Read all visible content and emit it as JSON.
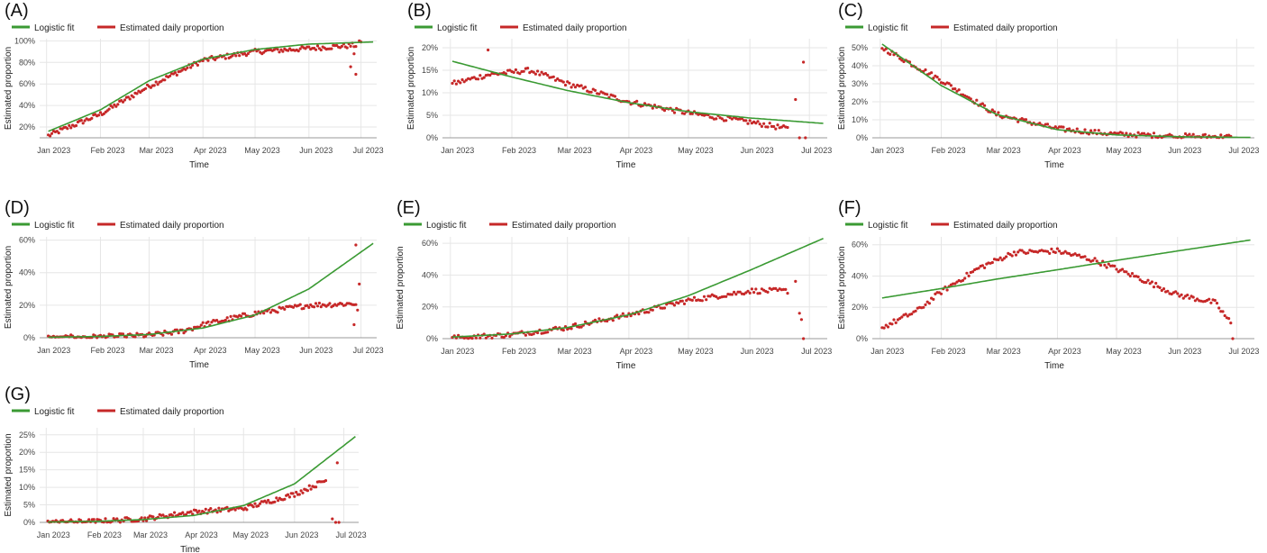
{
  "figure": {
    "legend_fit": "Logistic fit",
    "legend_points": "Estimated daily proportion",
    "colors": {
      "fit": "#3a9a33",
      "points": "#c62828",
      "grid": "#e6e6e6",
      "axis": "#999999"
    }
  },
  "chart_data": [
    {
      "panel": "(A)",
      "type": "line",
      "xlabel": "Time",
      "ylabel": "Estimated proportion",
      "x_ticks": [
        "Jan 2023",
        "Feb 2023",
        "Mar 2023",
        "Apr 2023",
        "May 2023",
        "Jun 2023",
        "Jul 2023"
      ],
      "y_ticks": [
        "20%",
        "40%",
        "60%",
        "80%",
        "100%"
      ],
      "xlim": [
        "2022-12-28",
        "2023-07-10"
      ],
      "ylim": [
        10,
        102
      ],
      "y_tick_values": [
        20,
        40,
        60,
        80,
        100
      ],
      "legend": "top-left",
      "fit": {
        "name": "Logistic fit",
        "x": [
          "2023-01-02",
          "2023-02-01",
          "2023-03-01",
          "2023-04-01",
          "2023-05-01",
          "2023-06-01",
          "2023-07-08"
        ],
        "y": [
          16,
          36,
          63,
          83,
          92,
          97,
          99
        ]
      },
      "points_trend": {
        "name": "Estimated daily proportion",
        "x": [
          "2023-01-02",
          "2023-02-01",
          "2023-03-01",
          "2023-04-01",
          "2023-05-01",
          "2023-06-01",
          "2023-06-28"
        ],
        "y": [
          12,
          32,
          58,
          82,
          90,
          93,
          96
        ]
      },
      "outliers": {
        "x": [
          "2023-06-25",
          "2023-06-27",
          "2023-06-28",
          "2023-06-30",
          "2023-07-01"
        ],
        "y": [
          76,
          88,
          69,
          100,
          99
        ]
      }
    },
    {
      "panel": "(B)",
      "type": "line",
      "xlabel": "Time",
      "ylabel": "Estimated proportion",
      "x_ticks": [
        "Jan 2023",
        "Feb 2023",
        "Mar 2023",
        "Apr 2023",
        "May 2023",
        "Jun 2023",
        "Jul 2023"
      ],
      "y_ticks": [
        "0%",
        "5%",
        "10%",
        "15%",
        "20%"
      ],
      "xlim": [
        "2022-12-28",
        "2023-07-10"
      ],
      "ylim": [
        0,
        22
      ],
      "y_tick_values": [
        0,
        5,
        10,
        15,
        20
      ],
      "legend": "top-left",
      "fit": {
        "name": "Logistic fit",
        "x": [
          "2023-01-02",
          "2023-02-01",
          "2023-03-01",
          "2023-04-01",
          "2023-05-01",
          "2023-06-01",
          "2023-07-08"
        ],
        "y": [
          17,
          13.5,
          10.5,
          7.8,
          5.8,
          4.4,
          3.2
        ]
      },
      "points_trend": {
        "name": "Estimated daily proportion",
        "x": [
          "2023-01-02",
          "2023-01-20",
          "2023-02-10",
          "2023-03-01",
          "2023-04-01",
          "2023-05-01",
          "2023-06-01",
          "2023-06-20"
        ],
        "y": [
          12,
          14,
          15,
          12,
          8,
          5.5,
          3.5,
          2
        ]
      },
      "outliers": {
        "x": [
          "2023-01-20",
          "2023-06-24",
          "2023-06-26",
          "2023-06-28",
          "2023-06-29"
        ],
        "y": [
          19.5,
          8.5,
          0,
          16.8,
          0
        ]
      }
    },
    {
      "panel": "(C)",
      "type": "line",
      "xlabel": "Time",
      "ylabel": "Estimated proportion",
      "x_ticks": [
        "Jan 2023",
        "Feb 2023",
        "Mar 2023",
        "Apr 2023",
        "May 2023",
        "Jun 2023",
        "Jul 2023"
      ],
      "y_ticks": [
        "0%",
        "10%",
        "20%",
        "30%",
        "40%",
        "50%"
      ],
      "xlim": [
        "2022-12-28",
        "2023-07-10"
      ],
      "ylim": [
        0,
        55
      ],
      "y_tick_values": [
        0,
        10,
        20,
        30,
        40,
        50
      ],
      "legend": "top-left",
      "fit": {
        "name": "Logistic fit",
        "x": [
          "2023-01-02",
          "2023-02-01",
          "2023-03-01",
          "2023-04-01",
          "2023-05-01",
          "2023-06-01",
          "2023-07-08"
        ],
        "y": [
          52,
          29,
          13,
          4.5,
          1.6,
          0.6,
          0.2
        ]
      },
      "points_trend": {
        "name": "Estimated daily proportion",
        "x": [
          "2023-01-02",
          "2023-02-01",
          "2023-03-01",
          "2023-04-01",
          "2023-05-01",
          "2023-06-01",
          "2023-06-28"
        ],
        "y": [
          50,
          32,
          13,
          5,
          2,
          1,
          0.5
        ]
      },
      "outliers": {
        "x": [],
        "y": []
      }
    },
    {
      "panel": "(D)",
      "type": "line",
      "xlabel": "Time",
      "ylabel": "Estimated proportion",
      "x_ticks": [
        "Jan 2023",
        "Feb 2023",
        "Mar 2023",
        "Apr 2023",
        "May 2023",
        "Jun 2023",
        "Jul 2023"
      ],
      "y_ticks": [
        "0%",
        "20%",
        "40%",
        "60%"
      ],
      "xlim": [
        "2022-12-28",
        "2023-07-10"
      ],
      "ylim": [
        0,
        62
      ],
      "y_tick_values": [
        0,
        20,
        40,
        60
      ],
      "legend": "top-left",
      "fit": {
        "name": "Logistic fit",
        "x": [
          "2023-01-02",
          "2023-02-01",
          "2023-03-01",
          "2023-04-01",
          "2023-05-01",
          "2023-06-01",
          "2023-07-08"
        ],
        "y": [
          0.3,
          0.8,
          2,
          6,
          14,
          30,
          58
        ]
      },
      "points_trend": {
        "name": "Estimated daily proportion",
        "x": [
          "2023-01-02",
          "2023-02-01",
          "2023-03-01",
          "2023-03-20",
          "2023-04-01",
          "2023-05-01",
          "2023-06-01",
          "2023-06-28"
        ],
        "y": [
          0,
          0.5,
          1.5,
          4,
          8,
          15,
          20,
          21
        ]
      },
      "outliers": {
        "x": [
          "2023-06-27",
          "2023-06-28",
          "2023-06-29",
          "2023-06-30"
        ],
        "y": [
          8,
          57,
          17,
          33
        ]
      }
    },
    {
      "panel": "(E)",
      "type": "line",
      "xlabel": "Time",
      "ylabel": "Estimated proportion",
      "x_ticks": [
        "Jan 2023",
        "Feb 2023",
        "Mar 2023",
        "Apr 2023",
        "May 2023",
        "Jun 2023",
        "Jul 2023"
      ],
      "y_ticks": [
        "0%",
        "20%",
        "40%",
        "60%"
      ],
      "xlim": [
        "2022-12-28",
        "2023-07-10"
      ],
      "ylim": [
        0,
        64
      ],
      "y_tick_values": [
        0,
        20,
        40,
        60
      ],
      "legend": "top-left",
      "fit": {
        "name": "Logistic fit",
        "x": [
          "2023-01-02",
          "2023-02-01",
          "2023-03-01",
          "2023-04-01",
          "2023-05-01",
          "2023-06-01",
          "2023-07-08"
        ],
        "y": [
          1,
          3,
          7,
          15,
          27,
          43,
          63
        ]
      },
      "points_trend": {
        "name": "Estimated daily proportion",
        "x": [
          "2023-01-02",
          "2023-02-01",
          "2023-03-01",
          "2023-04-01",
          "2023-05-01",
          "2023-06-01",
          "2023-06-20"
        ],
        "y": [
          0.5,
          2.5,
          7,
          15,
          24,
          30,
          30
        ]
      },
      "outliers": {
        "x": [
          "2023-06-24",
          "2023-06-26",
          "2023-06-27",
          "2023-06-28"
        ],
        "y": [
          36,
          16,
          12,
          0
        ]
      }
    },
    {
      "panel": "(F)",
      "type": "line",
      "xlabel": "Time",
      "ylabel": "Estimated proportion",
      "x_ticks": [
        "Jan 2023",
        "Feb 2023",
        "Mar 2023",
        "Apr 2023",
        "May 2023",
        "Jun 2023",
        "Jul 2023"
      ],
      "y_ticks": [
        "0%",
        "20%",
        "40%",
        "60%"
      ],
      "xlim": [
        "2022-12-28",
        "2023-07-10"
      ],
      "ylim": [
        0,
        65
      ],
      "y_tick_values": [
        0,
        20,
        40,
        60
      ],
      "legend": "top-left",
      "fit": {
        "name": "Logistic fit",
        "x": [
          "2023-01-02",
          "2023-02-01",
          "2023-03-01",
          "2023-04-01",
          "2023-05-01",
          "2023-06-01",
          "2023-07-08"
        ],
        "y": [
          26,
          32,
          38,
          44,
          50,
          56,
          63
        ]
      },
      "points_trend": {
        "name": "Estimated daily proportion",
        "x": [
          "2023-01-02",
          "2023-01-20",
          "2023-02-01",
          "2023-02-20",
          "2023-03-10",
          "2023-04-01",
          "2023-04-20",
          "2023-05-10",
          "2023-06-01",
          "2023-06-20",
          "2023-06-28"
        ],
        "y": [
          7,
          18,
          30,
          45,
          55,
          56,
          50,
          40,
          28,
          23,
          10
        ]
      },
      "outliers": {
        "x": [
          "2023-06-29"
        ],
        "y": [
          0
        ]
      }
    },
    {
      "panel": "(G)",
      "type": "line",
      "xlabel": "Time",
      "ylabel": "Estimated proportion",
      "x_ticks": [
        "Jan 2023",
        "Feb 2023",
        "Mar 2023",
        "Apr 2023",
        "May 2023",
        "Jun 2023",
        "Jul 2023"
      ],
      "y_ticks": [
        "0%",
        "5%",
        "10%",
        "15%",
        "20%",
        "25%"
      ],
      "xlim": [
        "2022-12-28",
        "2023-07-10"
      ],
      "ylim": [
        0,
        27
      ],
      "y_tick_values": [
        0,
        5,
        10,
        15,
        20,
        25
      ],
      "legend": "top-left",
      "fit": {
        "name": "Logistic fit",
        "x": [
          "2023-01-02",
          "2023-02-01",
          "2023-03-01",
          "2023-04-01",
          "2023-05-01",
          "2023-06-01",
          "2023-07-08"
        ],
        "y": [
          0.1,
          0.3,
          0.8,
          2,
          4.8,
          11,
          24.5
        ]
      },
      "points_trend": {
        "name": "Estimated daily proportion",
        "x": [
          "2023-01-02",
          "2023-02-01",
          "2023-03-01",
          "2023-04-01",
          "2023-05-01",
          "2023-06-01",
          "2023-06-20"
        ],
        "y": [
          0,
          0.3,
          1,
          3,
          4,
          8,
          12
        ]
      },
      "outliers": {
        "x": [
          "2023-06-24",
          "2023-06-26",
          "2023-06-27",
          "2023-06-28"
        ],
        "y": [
          1,
          0,
          17,
          0
        ]
      }
    }
  ]
}
